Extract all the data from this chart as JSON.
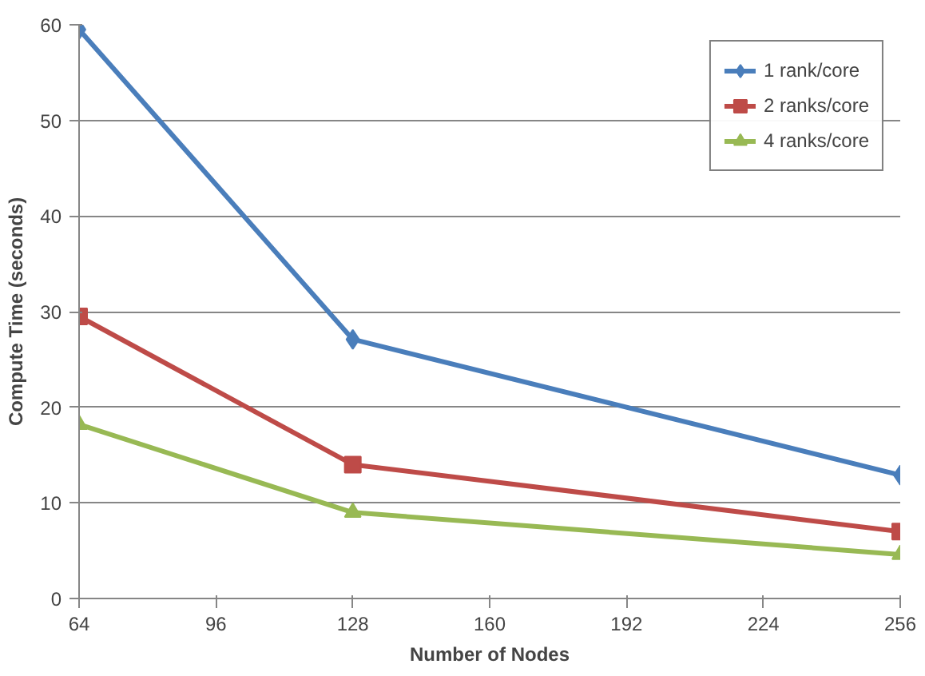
{
  "chart_data": {
    "type": "line",
    "xlabel": "Number of Nodes",
    "ylabel": "Compute Time (seconds)",
    "x": [
      64,
      128,
      256
    ],
    "series": [
      {
        "name": "1 rank/core",
        "color": "#4a7ebb",
        "marker": "diamond",
        "values": [
          59.5,
          27.1,
          12.9
        ]
      },
      {
        "name": "2 ranks/core",
        "color": "#be4b48",
        "marker": "square",
        "values": [
          29.5,
          14.0,
          7.0
        ]
      },
      {
        "name": "4 ranks/core",
        "color": "#98b954",
        "marker": "triangle",
        "values": [
          18.2,
          9.0,
          4.6
        ]
      }
    ],
    "xlim": [
      64,
      256
    ],
    "xticks": [
      64,
      96,
      128,
      160,
      192,
      224,
      256
    ],
    "ylim": [
      0,
      60
    ],
    "yticks": [
      0,
      10,
      20,
      30,
      40,
      50,
      60
    ],
    "grid": "y",
    "legend": "top right",
    "line_style": "solid"
  }
}
